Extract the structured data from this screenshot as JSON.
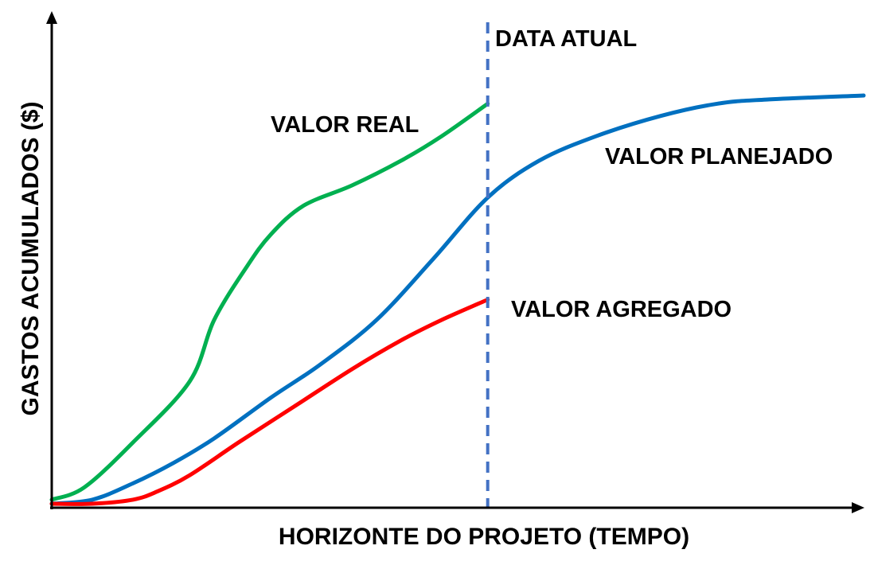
{
  "chart_data": {
    "type": "line",
    "title": "",
    "xlabel": "HORIZONTE DO PROJETO (TEMPO)",
    "ylabel": "GASTOS ACUMULADOS ($)",
    "xlim": [
      0,
      100
    ],
    "ylim": [
      0,
      100
    ],
    "grid": false,
    "legend": "none",
    "axis_color": "#000000",
    "current_date": {
      "label": "DATA ATUAL",
      "x": 53.7,
      "color": "#4472C4"
    },
    "series": [
      {
        "name": "VALOR REAL",
        "color": "#00B050",
        "x": [
          0,
          4,
          10,
          17,
          20,
          24,
          27,
          31,
          37,
          43,
          48,
          53.7
        ],
        "y": [
          1,
          4,
          15,
          30,
          45,
          58,
          66,
          73,
          78,
          84,
          90,
          98
        ]
      },
      {
        "name": "VALOR PLANEJADO",
        "color": "#0070C0",
        "x": [
          0,
          5,
          10,
          15,
          20,
          27,
          33,
          40,
          47,
          53.7,
          60,
          67,
          75,
          82,
          88,
          100
        ],
        "y": [
          0,
          1,
          5,
          10,
          16,
          26,
          34,
          45,
          60,
          75,
          84,
          90,
          95,
          98,
          99,
          100
        ]
      },
      {
        "name": "VALOR AGREGADO",
        "color": "#FF0000",
        "x": [
          0,
          5,
          10,
          13,
          17,
          23,
          30,
          37,
          43,
          48,
          53.7
        ],
        "y": [
          0,
          0,
          1,
          3,
          7,
          15,
          24,
          33,
          40,
          45,
          50
        ]
      }
    ]
  }
}
